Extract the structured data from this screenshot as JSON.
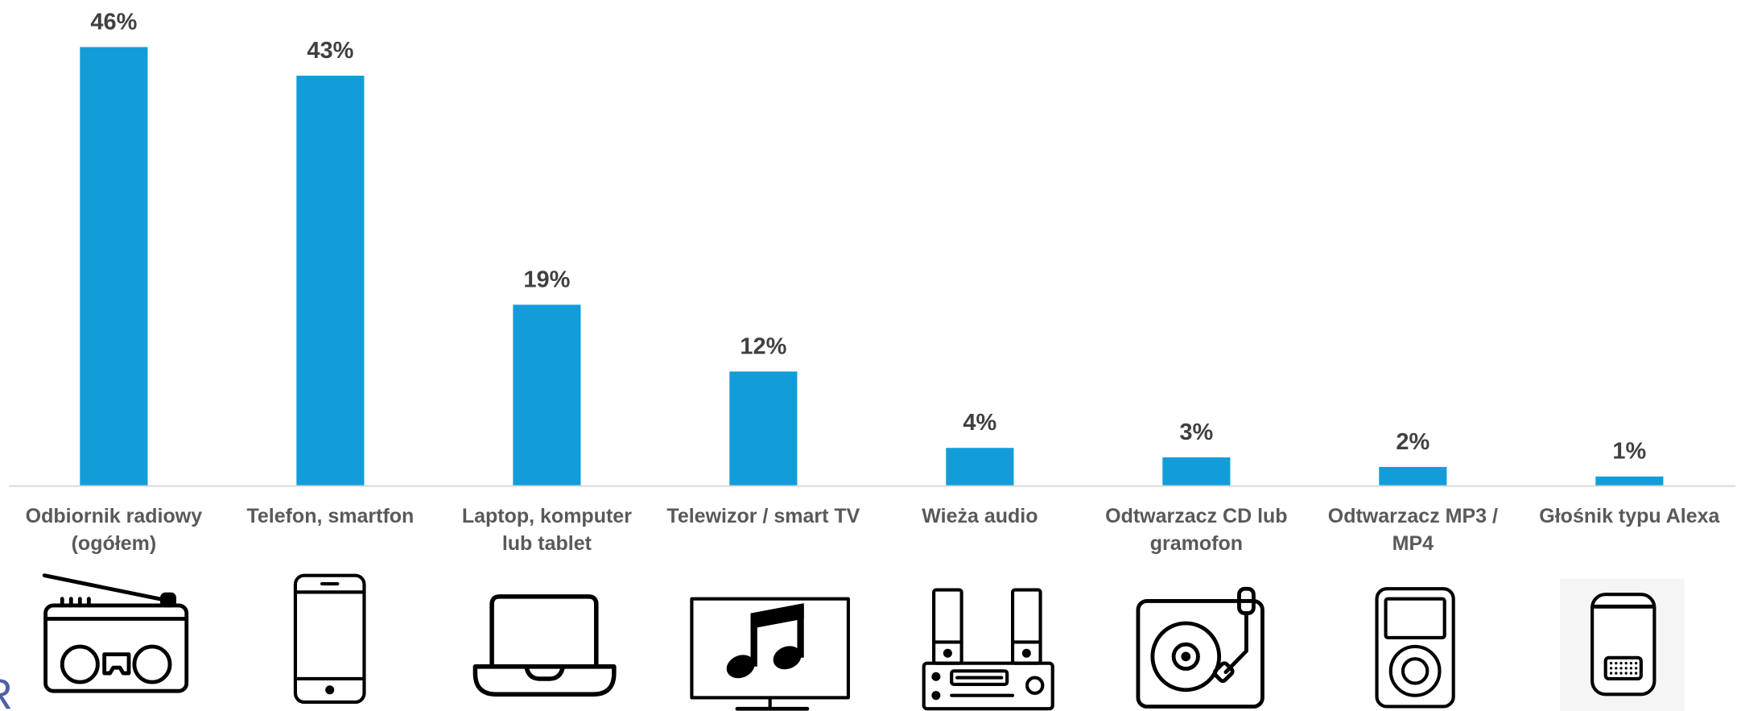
{
  "chart_data": {
    "type": "bar",
    "categories": [
      "Odbiornik radiowy (ogółem)",
      "Telefon, smartfon",
      "Laptop, komputer lub tablet",
      "Telewizor / smart TV",
      "Wieża audio",
      "Odtwarzacz CD lub gramofon",
      "Odtwarzacz MP3 / MP4",
      "Głośnik typu Alexa"
    ],
    "values": [
      46,
      43,
      19,
      12,
      4,
      3,
      2,
      1
    ],
    "value_labels": [
      "46%",
      "43%",
      "19%",
      "12%",
      "4%",
      "3%",
      "2%",
      "1%"
    ],
    "grid": false,
    "legend": "none"
  },
  "icons": [
    "radio-icon",
    "smartphone-icon",
    "laptop-icon",
    "tv-music-icon",
    "stereo-icon",
    "turntable-icon",
    "mp3-player-icon",
    "smart-speaker-icon"
  ],
  "colors": {
    "bar": "#139DD8",
    "value_label": "#404040",
    "category_label": "#595959",
    "axis": "#D9D9D9",
    "icon": "#000000",
    "logo": "#4F5FA8"
  },
  "logo_fragment": "R"
}
